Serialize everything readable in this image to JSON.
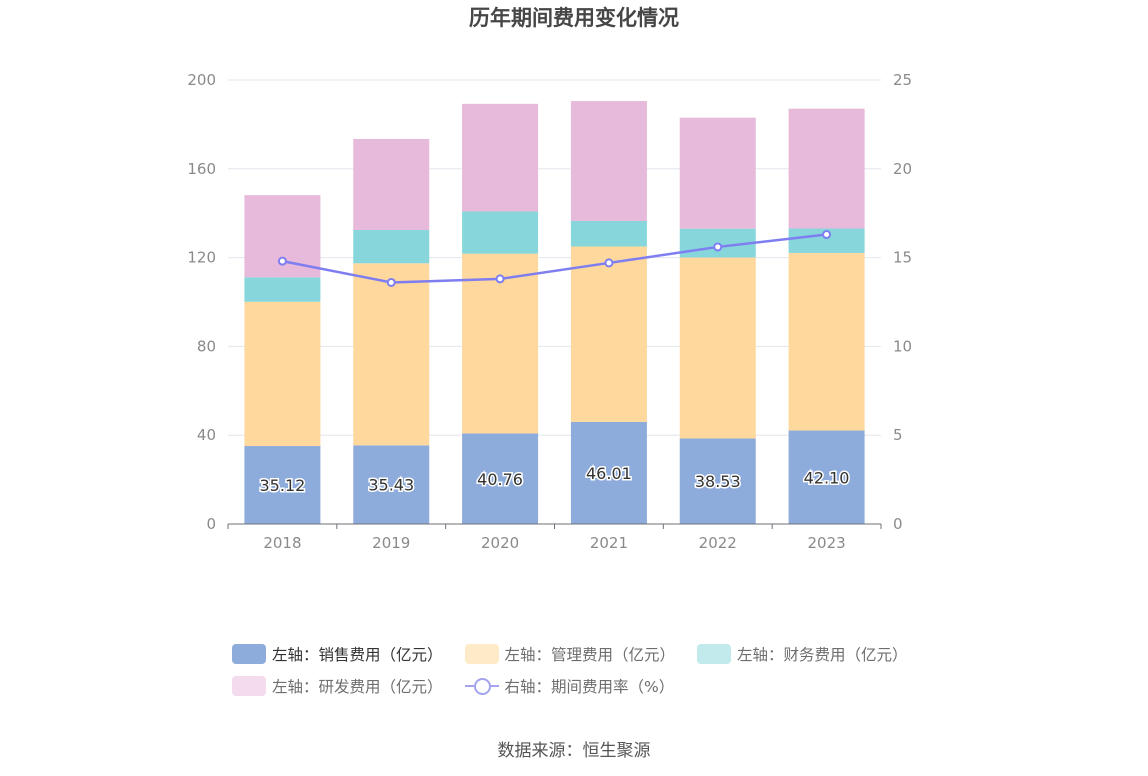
{
  "title": "历年期间费用变化情况",
  "source": "数据来源：恒生聚源",
  "colors": {
    "sales": "#8eacdb",
    "admin": "#fed89c",
    "finance": "#86d6db",
    "rd": "#e7b9da",
    "rate": "#7e7ef0"
  },
  "legend": [
    {
      "label": "左轴：销售费用（亿元）",
      "key": "sales"
    },
    {
      "label": "左轴：管理费用（亿元）",
      "key": "admin"
    },
    {
      "label": "左轴：财务费用（亿元）",
      "key": "finance"
    },
    {
      "label": "左轴：研发费用（亿元）",
      "key": "rd"
    },
    {
      "label": "右轴：期间费用率（%）",
      "key": "rate"
    }
  ],
  "chart_data": {
    "type": "bar",
    "stacked": true,
    "title": "历年期间费用变化情况",
    "categories": [
      "2018",
      "2019",
      "2020",
      "2021",
      "2022",
      "2023"
    ],
    "series": [
      {
        "name": "左轴：销售费用（亿元）",
        "key": "sales",
        "axis": "left",
        "values": [
          35.12,
          35.43,
          40.76,
          46.01,
          38.53,
          42.1
        ],
        "labels": [
          "35.12",
          "35.43",
          "40.76",
          "46.01",
          "38.53",
          "42.10"
        ]
      },
      {
        "name": "左轴：管理费用（亿元）",
        "key": "admin",
        "axis": "left",
        "values": [
          65.0,
          82.0,
          81.0,
          79.0,
          81.5,
          80.0
        ]
      },
      {
        "name": "左轴：财务费用（亿元）",
        "key": "finance",
        "axis": "left",
        "values": [
          11.0,
          15.0,
          19.0,
          11.5,
          13.0,
          11.0
        ]
      },
      {
        "name": "左轴：研发费用（亿元）",
        "key": "rd",
        "axis": "left",
        "values": [
          37.0,
          41.0,
          48.5,
          54.0,
          50.0,
          54.0
        ]
      },
      {
        "name": "右轴：期间费用率（%）",
        "key": "rate",
        "axis": "right",
        "type": "line",
        "values": [
          14.8,
          13.6,
          13.8,
          14.7,
          15.6,
          16.3
        ]
      }
    ],
    "left_axis": {
      "min": 0,
      "max": 200,
      "ticks": [
        "0",
        "40",
        "80",
        "120",
        "160",
        "200"
      ],
      "tick_values": [
        0,
        40,
        80,
        120,
        160,
        200
      ]
    },
    "right_axis": {
      "min": 0,
      "max": 25,
      "ticks": [
        "0",
        "5",
        "10",
        "15",
        "20",
        "25"
      ],
      "tick_values": [
        0,
        5,
        10,
        15,
        20,
        25
      ]
    },
    "grid": true,
    "legend_position": "bottom"
  }
}
